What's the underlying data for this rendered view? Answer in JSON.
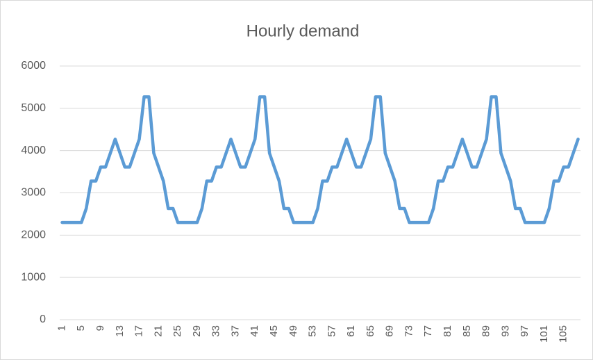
{
  "chart_data": {
    "type": "line",
    "title": "Hourly demand",
    "categories": [
      1,
      null,
      null,
      null,
      5,
      null,
      null,
      null,
      9,
      null,
      null,
      null,
      13,
      null,
      null,
      null,
      17,
      null,
      null,
      null,
      21,
      null,
      null,
      null,
      25,
      null,
      null,
      null,
      29,
      null,
      null,
      null,
      33,
      null,
      null,
      null,
      37,
      null,
      null,
      null,
      41,
      null,
      null,
      null,
      45,
      null,
      null,
      null,
      49,
      null,
      null,
      null,
      53,
      null,
      null,
      null,
      57,
      null,
      null,
      null,
      61,
      null,
      null,
      null,
      65,
      null,
      null,
      null,
      69,
      null,
      null,
      null,
      73,
      null,
      null,
      null,
      77,
      null,
      null,
      null,
      81,
      null,
      null,
      null,
      85,
      null,
      null,
      null,
      89,
      null,
      null,
      null,
      93,
      null,
      null,
      null,
      97,
      null,
      null,
      null,
      101,
      null,
      null,
      null,
      105,
      null,
      null,
      null
    ],
    "series": [
      {
        "name": "Hourly demand",
        "color": "#5b9bd5",
        "values": [
          2300,
          2300,
          2300,
          2300,
          2300,
          2630,
          3280,
          3280,
          3610,
          3610,
          3940,
          4270,
          3940,
          3610,
          3610,
          3940,
          4270,
          5270,
          5270,
          3940,
          3610,
          3280,
          2630,
          2630,
          2300,
          2300,
          2300,
          2300,
          2300,
          2630,
          3280,
          3280,
          3610,
          3610,
          3940,
          4270,
          3940,
          3610,
          3610,
          3940,
          4270,
          5270,
          5270,
          3940,
          3610,
          3280,
          2630,
          2630,
          2300,
          2300,
          2300,
          2300,
          2300,
          2630,
          3280,
          3280,
          3610,
          3610,
          3940,
          4270,
          3940,
          3610,
          3610,
          3940,
          4270,
          5270,
          5270,
          3940,
          3610,
          3280,
          2630,
          2630,
          2300,
          2300,
          2300,
          2300,
          2300,
          2630,
          3280,
          3280,
          3610,
          3610,
          3940,
          4270,
          3940,
          3610,
          3610,
          3940,
          4270,
          5270,
          5270,
          3940,
          3610,
          3280,
          2630,
          2630,
          2300,
          2300,
          2300,
          2300,
          2300,
          2630,
          3280,
          3280,
          3610,
          3610,
          3940,
          4270
        ]
      }
    ],
    "ylim": [
      0,
      6000
    ],
    "yticks": [
      0,
      1000,
      2000,
      3000,
      4000,
      5000,
      6000
    ],
    "grid": true
  }
}
